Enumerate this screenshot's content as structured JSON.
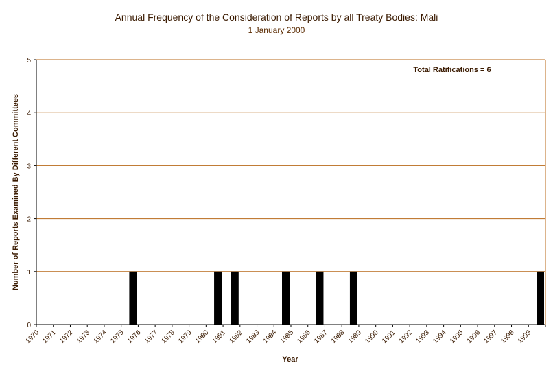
{
  "chart_data": {
    "type": "bar",
    "title": "Annual Frequency of the Consideration of Reports by all Treaty Bodies: Mali",
    "subtitle": "1 January 2000",
    "xlabel": "Year",
    "ylabel": "Number of Reports Examined By Different Committees",
    "annotation": "Total Ratifications = 6",
    "ylim": [
      0,
      5
    ],
    "yticks": [
      "0",
      "1",
      "2",
      "3",
      "4",
      "5"
    ],
    "grid": true,
    "categories": [
      "1970",
      "1971",
      "1972",
      "1973",
      "1974",
      "1975",
      "1976",
      "1977",
      "1978",
      "1979",
      "1980",
      "1981",
      "1982",
      "1983",
      "1984",
      "1985",
      "1986",
      "1987",
      "1988",
      "1989",
      "1990",
      "1991",
      "1992",
      "1993",
      "1994",
      "1995",
      "1996",
      "1997",
      "1998",
      "1999"
    ],
    "values": [
      0,
      0,
      0,
      0,
      0,
      1,
      0,
      0,
      0,
      0,
      1,
      1,
      0,
      0,
      1,
      0,
      1,
      0,
      1,
      0,
      0,
      0,
      0,
      0,
      0,
      0,
      0,
      0,
      0,
      1
    ],
    "tick_labels": [
      "1970",
      "1971",
      "1972",
      "1973",
      "1974",
      "1975",
      "1976",
      "1977",
      "1978",
      "1979",
      "1980",
      "1981",
      "1982",
      "1983",
      "1984",
      "1985",
      "1986",
      "1987",
      "1988",
      "1989",
      "1990",
      "1991",
      "1992",
      "1993",
      "1994",
      "1995",
      "1996",
      "1997",
      "1998",
      "1999"
    ],
    "colors": {
      "bar": "#000000",
      "grid": "#b86a1a",
      "axis": "#000000"
    }
  }
}
